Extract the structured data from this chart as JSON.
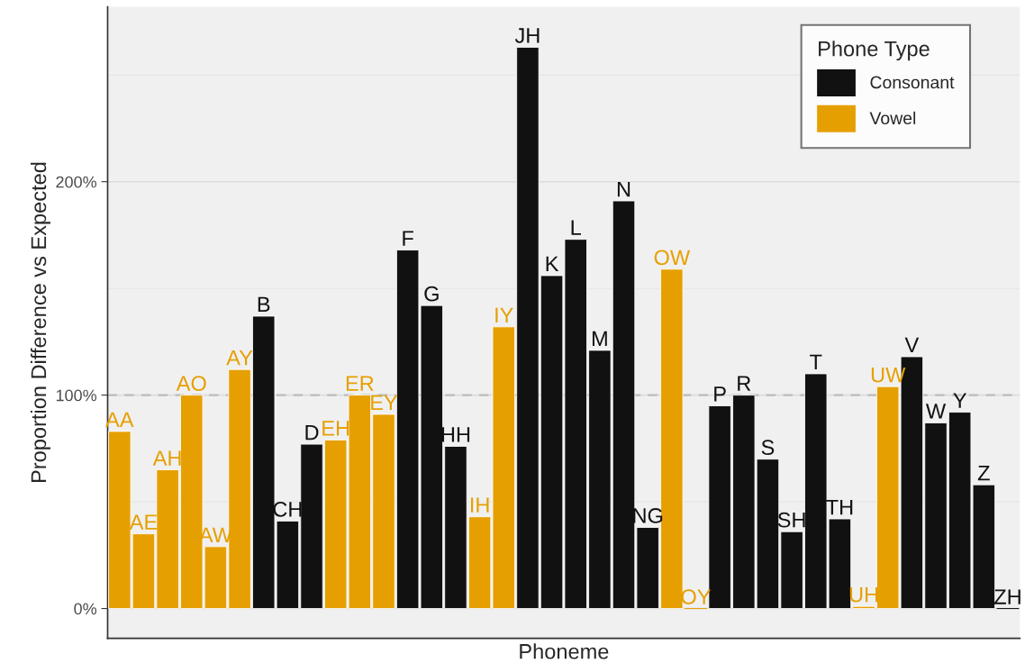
{
  "chart_data": {
    "type": "bar",
    "xlabel": "Phoneme",
    "ylabel": "Proportion Difference vs Expected",
    "legend_title": "Phone Type",
    "categories": [
      "AA",
      "AE",
      "AH",
      "AO",
      "AW",
      "AY",
      "B",
      "CH",
      "D",
      "EH",
      "ER",
      "EY",
      "F",
      "G",
      "HH",
      "IH",
      "IY",
      "JH",
      "K",
      "L",
      "M",
      "N",
      "NG",
      "OW",
      "OY",
      "P",
      "R",
      "S",
      "SH",
      "T",
      "TH",
      "UH",
      "UW",
      "V",
      "W",
      "Y",
      "Z",
      "ZH"
    ],
    "series": [
      {
        "name": "Consonant",
        "color": "#111111",
        "values": [
          null,
          null,
          null,
          null,
          null,
          null,
          137,
          41,
          77,
          null,
          null,
          null,
          168,
          142,
          76,
          null,
          null,
          263,
          156,
          173,
          121,
          191,
          38,
          null,
          null,
          95,
          100,
          70,
          36,
          110,
          42,
          null,
          null,
          118,
          87,
          92,
          58,
          0
        ]
      },
      {
        "name": "Vowel",
        "color": "#e69f00",
        "values": [
          83,
          35,
          65,
          100,
          29,
          112,
          null,
          null,
          null,
          79,
          100,
          91,
          null,
          null,
          null,
          43,
          132,
          null,
          null,
          null,
          null,
          null,
          null,
          159,
          0,
          null,
          null,
          null,
          null,
          null,
          null,
          1,
          104,
          null,
          null,
          null,
          null,
          null
        ]
      }
    ],
    "ylim": [
      -14,
      282
    ],
    "yticks": [
      {
        "value": 0,
        "label": "0%"
      },
      {
        "value": 100,
        "label": "100%"
      },
      {
        "value": 200,
        "label": "200%"
      }
    ],
    "ref_lines": [
      {
        "axis": "y",
        "value": 100,
        "color": "#bdbdbd",
        "line_style": "dashed"
      }
    ],
    "grid": "y",
    "legend": "top right",
    "tick_labels": "y"
  }
}
